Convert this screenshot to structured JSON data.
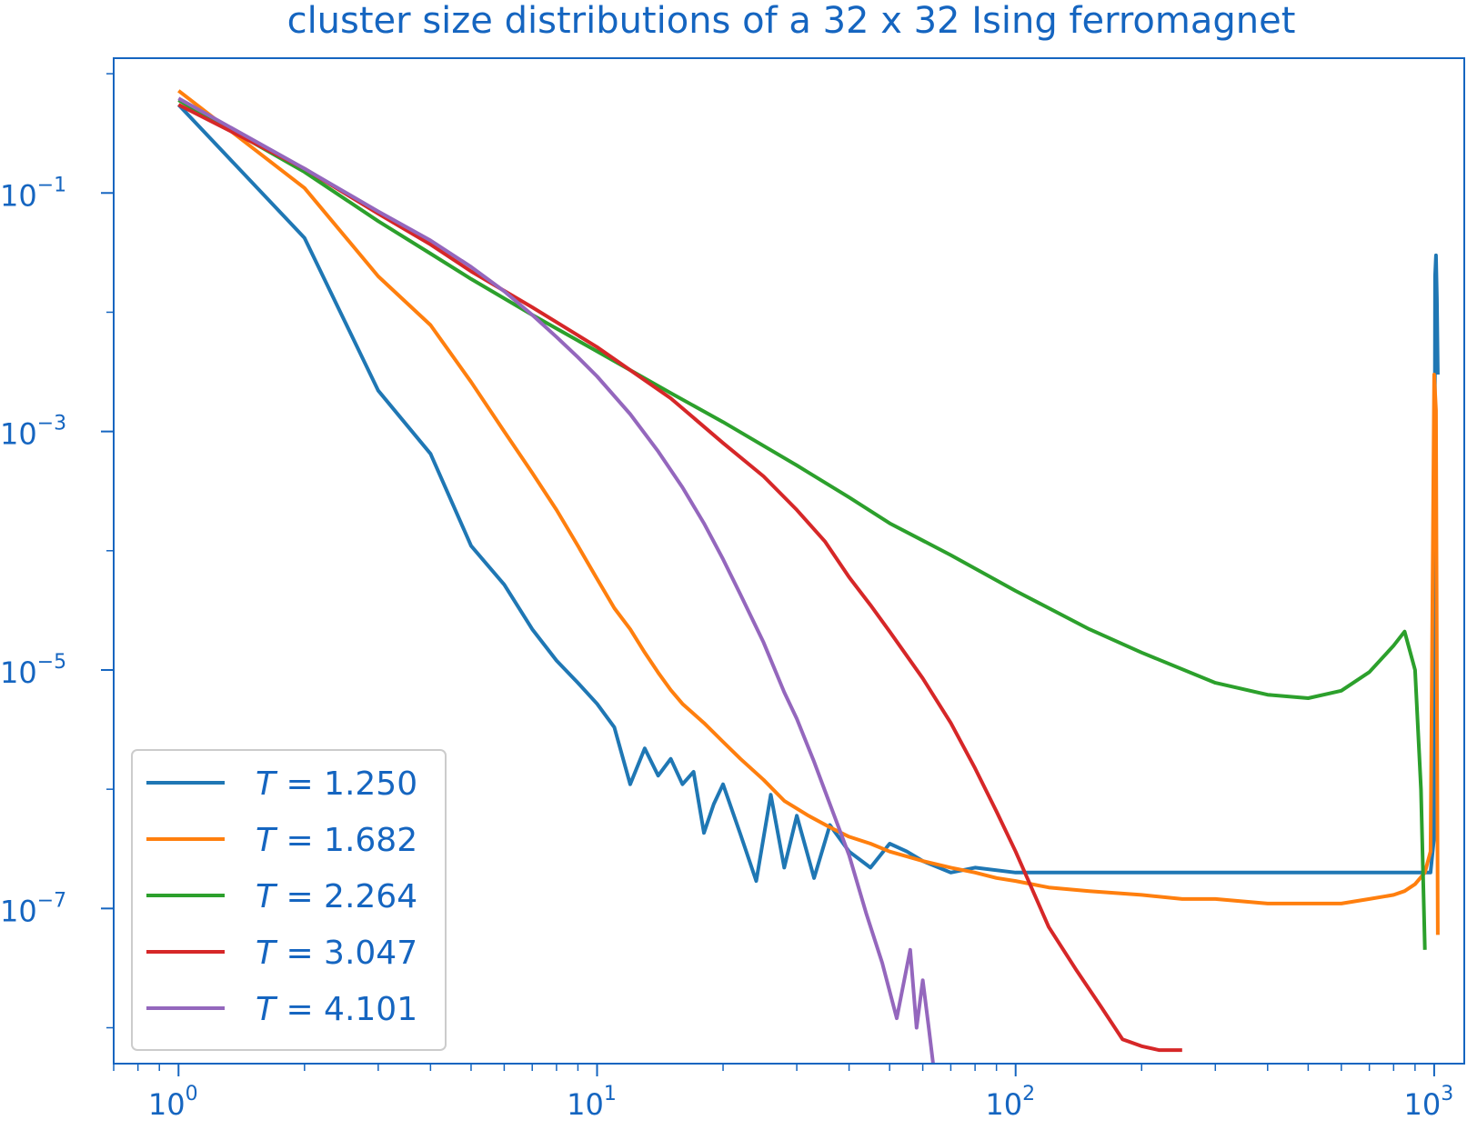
{
  "chart_data": {
    "type": "line",
    "title": "cluster size distributions of a 32 x 32 Ising ferromagnet",
    "xlabel": "",
    "ylabel": "",
    "xscale": "log",
    "yscale": "log",
    "xlim": [
      0.7,
      1180
    ],
    "ylim": [
      5e-09,
      1.35
    ],
    "x_ticks": [
      {
        "value": 1,
        "label": "10",
        "exp": "0"
      },
      {
        "value": 10,
        "label": "10",
        "exp": "1"
      },
      {
        "value": 100,
        "label": "10",
        "exp": "2"
      },
      {
        "value": 1000,
        "label": "10",
        "exp": "3"
      }
    ],
    "y_ticks": [
      {
        "value": 0.1,
        "label": "10",
        "exp": "−1"
      },
      {
        "value": 0.001,
        "label": "10",
        "exp": "−3"
      },
      {
        "value": 1e-05,
        "label": "10",
        "exp": "−5"
      },
      {
        "value": 1e-07,
        "label": "10",
        "exp": "−7"
      }
    ],
    "grid": false,
    "legend_position": "lower-left",
    "colors": {
      "axis": "#1565c0",
      "legend_border": "#cccccc"
    },
    "series": [
      {
        "name_prefix": "T",
        "name_value": " = 1.250",
        "color": "#1f77b4",
        "x": [
          1,
          2,
          3,
          4,
          5,
          6,
          7,
          8,
          9,
          10,
          11,
          12,
          13,
          14,
          15,
          16,
          17,
          18,
          19,
          20,
          22,
          24,
          26,
          28,
          30,
          33,
          36,
          40,
          45,
          50,
          55,
          60,
          70,
          80,
          100,
          150,
          200,
          300,
          500,
          800,
          950,
          980,
          1000,
          1005,
          1010,
          1015,
          1020
        ],
        "y": [
          0.55,
          0.042,
          0.0022,
          0.00065,
          0.00011,
          5.2e-05,
          2.2e-05,
          1.2e-05,
          7.8e-06,
          5.2e-06,
          3.3e-06,
          1.1e-06,
          2.2e-06,
          1.3e-06,
          1.8e-06,
          1.1e-06,
          1.4e-06,
          4.3e-07,
          7.5e-07,
          1.1e-06,
          4.2e-07,
          1.7e-07,
          9e-07,
          2.2e-07,
          6e-07,
          1.8e-07,
          5e-07,
          3e-07,
          2.2e-07,
          3.5e-07,
          3e-07,
          2.5e-07,
          2e-07,
          2.2e-07,
          2e-07,
          2e-07,
          2e-07,
          2e-07,
          2e-07,
          2e-07,
          2e-07,
          2e-07,
          4e-07,
          0.02,
          0.03,
          0.013,
          0.003
        ]
      },
      {
        "name_prefix": "T",
        "name_value": " = 1.682",
        "color": "#ff7f0e",
        "x": [
          1,
          2,
          3,
          4,
          5,
          6,
          7,
          8,
          9,
          10,
          11,
          12,
          13,
          14,
          15,
          16,
          18,
          20,
          22,
          25,
          28,
          32,
          36,
          40,
          45,
          50,
          60,
          70,
          80,
          90,
          100,
          120,
          150,
          200,
          250,
          300,
          400,
          500,
          600,
          700,
          800,
          850,
          900,
          950,
          980,
          1000,
          1010,
          1020
        ],
        "y": [
          0.72,
          0.11,
          0.02,
          0.0078,
          0.0026,
          0.001,
          0.00045,
          0.00022,
          0.00011,
          5.8e-05,
          3.3e-05,
          2.2e-05,
          1.4e-05,
          9.5e-06,
          6.8e-06,
          5.2e-06,
          3.6e-06,
          2.5e-06,
          1.8e-06,
          1.2e-06,
          8e-07,
          6e-07,
          4.8e-07,
          4e-07,
          3.5e-07,
          3e-07,
          2.5e-07,
          2.2e-07,
          2e-07,
          1.8e-07,
          1.7e-07,
          1.5e-07,
          1.4e-07,
          1.3e-07,
          1.2e-07,
          1.2e-07,
          1.1e-07,
          1.1e-07,
          1.1e-07,
          1.2e-07,
          1.3e-07,
          1.4e-07,
          1.6e-07,
          2e-07,
          3e-07,
          0.003,
          0.0015,
          6e-08
        ]
      },
      {
        "name_prefix": "T",
        "name_value": " = 2.264",
        "color": "#2ca02c",
        "x": [
          1,
          2,
          3,
          4,
          5,
          7,
          10,
          15,
          20,
          30,
          40,
          50,
          70,
          100,
          150,
          200,
          300,
          400,
          500,
          600,
          700,
          800,
          850,
          900,
          930,
          950
        ],
        "y": [
          0.6,
          0.15,
          0.058,
          0.031,
          0.019,
          0.0095,
          0.0047,
          0.0021,
          0.0012,
          0.00052,
          0.00028,
          0.00017,
          9.2e-05,
          4.6e-05,
          2.2e-05,
          1.4e-05,
          7.8e-06,
          6.2e-06,
          5.8e-06,
          6.7e-06,
          9.6e-06,
          1.6e-05,
          2.1e-05,
          1e-05,
          1e-06,
          4.5e-08
        ]
      },
      {
        "name_prefix": "T",
        "name_value": " = 3.047",
        "color": "#d62728",
        "x": [
          1,
          2,
          3,
          4,
          5,
          7,
          10,
          15,
          20,
          25,
          30,
          35,
          40,
          45,
          50,
          60,
          70,
          80,
          90,
          100,
          120,
          140,
          160,
          180,
          200,
          220,
          250
        ],
        "y": [
          0.55,
          0.16,
          0.067,
          0.037,
          0.022,
          0.011,
          0.0051,
          0.0019,
          0.0008,
          0.00042,
          0.00022,
          0.00012,
          6e-05,
          3.5e-05,
          2.1e-05,
          8.5e-06,
          3.6e-06,
          1.5e-06,
          6.5e-07,
          3e-07,
          7e-08,
          3e-08,
          1.5e-08,
          8e-09,
          7e-09,
          6.5e-09,
          6.5e-09
        ]
      },
      {
        "name_prefix": "T",
        "name_value": " = 4.101",
        "color": "#9467bd",
        "x": [
          1,
          2,
          3,
          4,
          5,
          6,
          7,
          8,
          9,
          10,
          12,
          14,
          16,
          18,
          20,
          22,
          25,
          28,
          30,
          33,
          36,
          40,
          44,
          48,
          52,
          56,
          58,
          60,
          62,
          64
        ],
        "y": [
          0.62,
          0.16,
          0.07,
          0.04,
          0.024,
          0.015,
          0.0095,
          0.0062,
          0.0042,
          0.0029,
          0.0014,
          0.00068,
          0.00034,
          0.00017,
          8.5e-05,
          4.3e-05,
          1.7e-05,
          6.5e-06,
          3.9e-06,
          1.7e-06,
          7.5e-07,
          2.8e-07,
          9e-08,
          3.5e-08,
          1.2e-08,
          4.5e-08,
          1e-08,
          2.5e-08,
          1e-08,
          4e-09
        ]
      }
    ]
  }
}
